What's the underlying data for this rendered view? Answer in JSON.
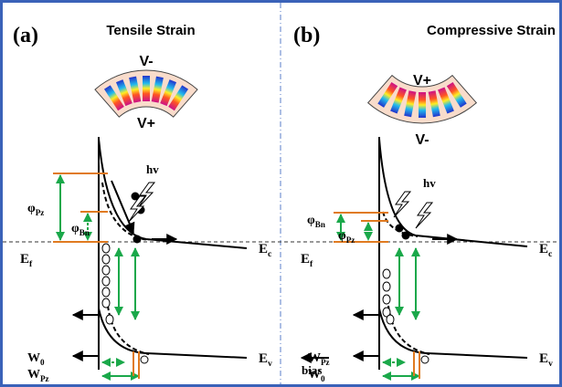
{
  "panels": [
    {
      "label": "(a)",
      "title": "Tensile Strain",
      "top_pole": "V-",
      "bottom_pole": "V+",
      "photon": "hv",
      "barrier_pz": {
        "base": "φ",
        "sub": "Pz"
      },
      "barrier_bn": {
        "base": "φ",
        "sub": "Bn"
      },
      "ec": {
        "base": "E",
        "sub": "c"
      },
      "ef": {
        "base": "E",
        "sub": "f"
      },
      "ev": {
        "base": "E",
        "sub": "v"
      },
      "w_upper": {
        "base": "W",
        "sub": "0"
      },
      "w_lower": {
        "base": "W",
        "sub": "Pz"
      }
    },
    {
      "label": "(b)",
      "title": "Compressive Strain",
      "top_pole": "V+",
      "bottom_pole": "V-",
      "photon": "hv",
      "barrier_pz": {
        "base": "φ",
        "sub": "Pz"
      },
      "barrier_bn": {
        "base": "φ",
        "sub": "Bn"
      },
      "ec": {
        "base": "E",
        "sub": "c"
      },
      "ef": {
        "base": "E",
        "sub": "f"
      },
      "ev": {
        "base": "E",
        "sub": "v"
      },
      "w_upper": {
        "base": "W",
        "sub": "Pz"
      },
      "w_lower": {
        "base": "W",
        "sub": "0"
      },
      "bias": "bias"
    }
  ]
}
